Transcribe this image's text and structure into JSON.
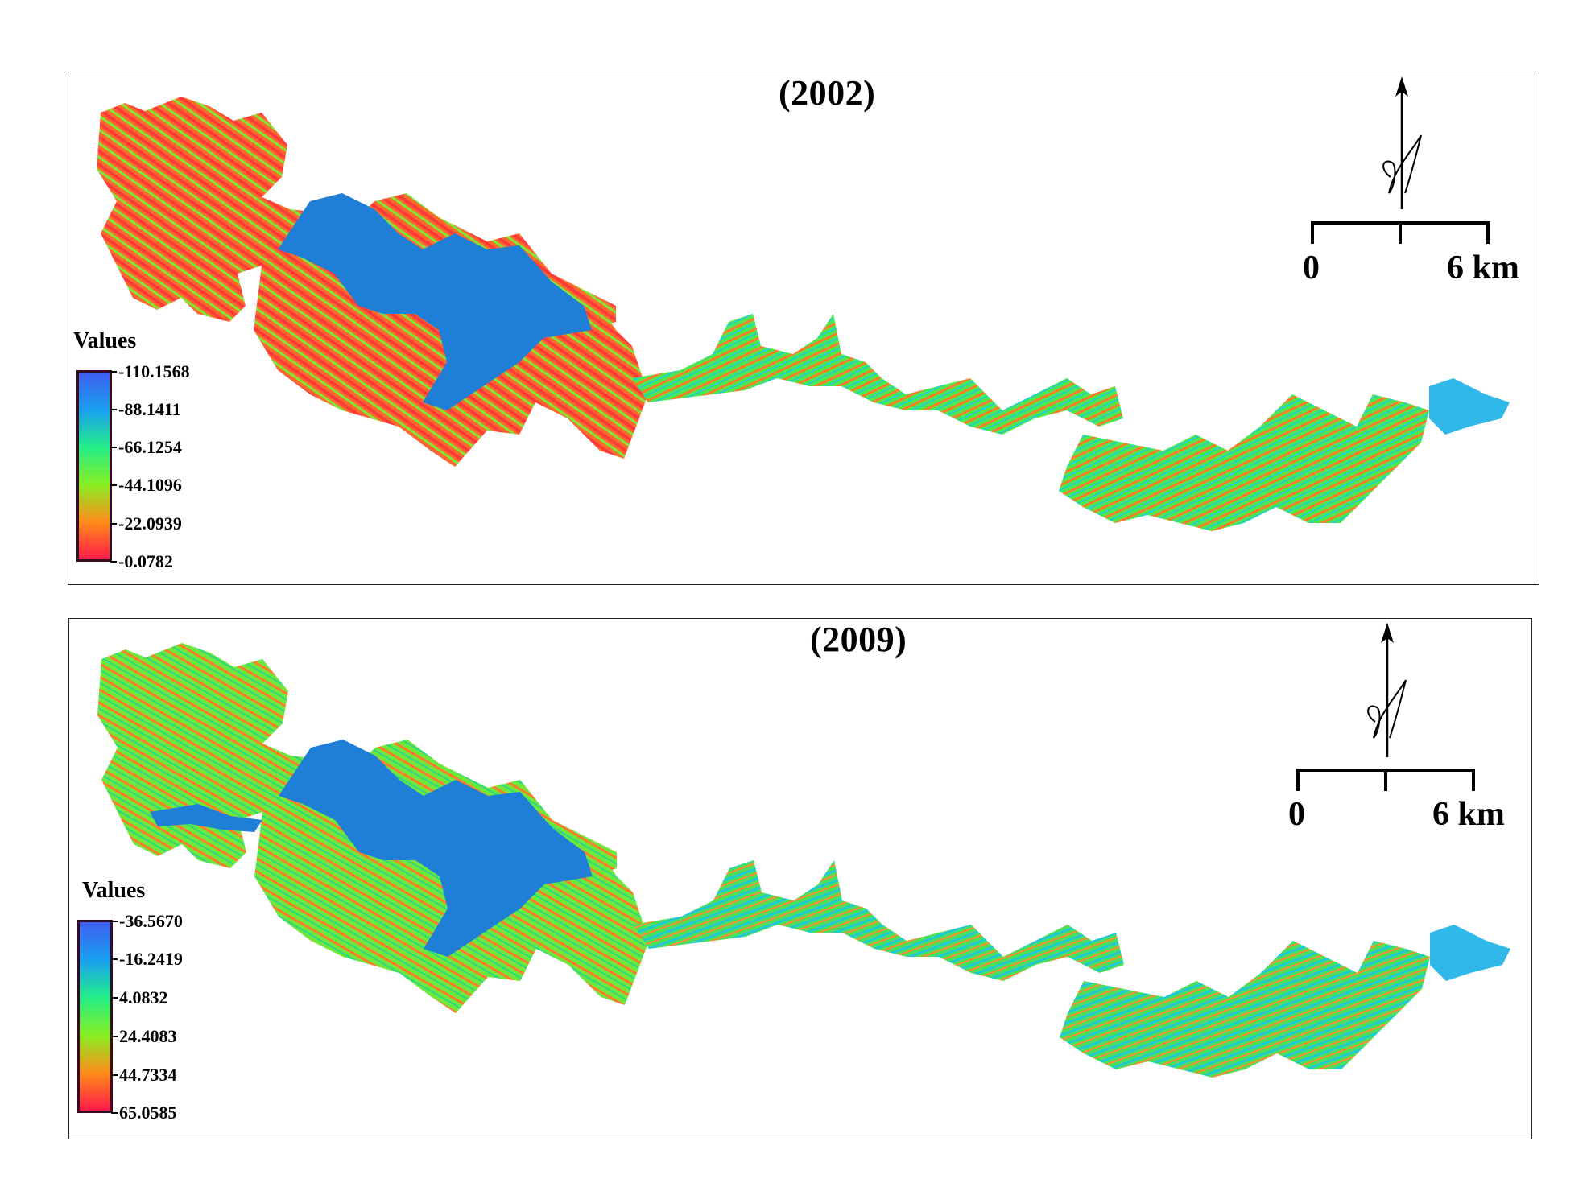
{
  "figure": {
    "panels": [
      {
        "title": "(2002)",
        "legend": {
          "title": "Values",
          "labels": [
            "-110.1568",
            "-88.1411",
            "-66.1254",
            "-44.1096",
            "-22.0939",
            "-0.0782"
          ],
          "gradient_colors": [
            "#3f5ff0",
            "#1aa0f0",
            "#22ee88",
            "#88ee22",
            "#ff8c1a",
            "#ff1a4a"
          ]
        },
        "scale_bar": {
          "start_label": "0",
          "end_label": "6 km"
        },
        "north_arrow": {
          "label": "N"
        },
        "reservoir_color": "#1f7fd6"
      },
      {
        "title": "(2009)",
        "legend": {
          "title": "Values",
          "labels": [
            "-36.5670",
            "-16.2419",
            "4.0832",
            "24.4083",
            "44.7334",
            "65.0585"
          ],
          "gradient_colors": [
            "#3f5ff0",
            "#1aa0f0",
            "#22ee88",
            "#88ee22",
            "#ff8c1a",
            "#ff1a4a"
          ]
        },
        "scale_bar": {
          "start_label": "0",
          "end_label": "6 km"
        },
        "north_arrow": {
          "label": "N"
        },
        "reservoir_color": "#1f7fd6"
      }
    ]
  }
}
